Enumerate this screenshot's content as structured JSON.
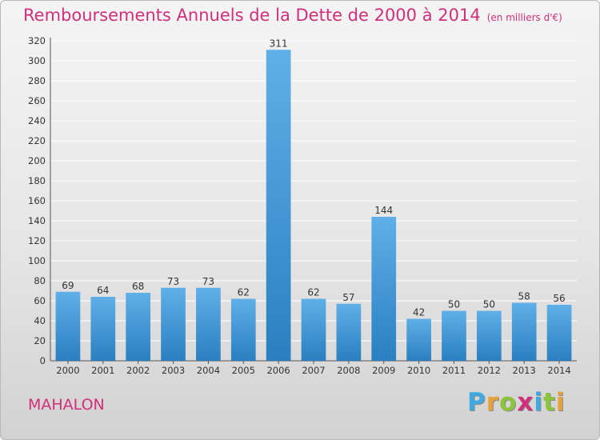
{
  "page": {
    "title": "Remboursements Annuels de la Dette de 2000 à 2014",
    "subtitle": "(en milliers d'€)",
    "commune": "MAHALON",
    "brand": {
      "name": "Proxiti",
      "letters": [
        {
          "ch": "P",
          "color": "#3fa9e0"
        },
        {
          "ch": "r",
          "color": "#e9a23a"
        },
        {
          "ch": "o",
          "color": "#8cc43c"
        },
        {
          "ch": "x",
          "color": "#d0307a"
        },
        {
          "ch": "i",
          "color": "#3fa9e0"
        },
        {
          "ch": "t",
          "color": "#8cc43c"
        },
        {
          "ch": "i",
          "color": "#e9a23a"
        }
      ]
    }
  },
  "chart_data": {
    "type": "bar",
    "title": "Remboursements Annuels de la Dette de 2000 à 2014",
    "subtitle": "(en milliers d'€)",
    "xlabel": "",
    "ylabel": "",
    "categories": [
      "2000",
      "2001",
      "2002",
      "2003",
      "2004",
      "2005",
      "2006",
      "2007",
      "2008",
      "2009",
      "2010",
      "2011",
      "2012",
      "2013",
      "2014"
    ],
    "values": [
      69,
      64,
      68,
      73,
      73,
      62,
      311,
      62,
      57,
      144,
      42,
      50,
      50,
      58,
      56
    ],
    "data_labels": [
      "69",
      "64",
      "68",
      "73",
      "73",
      "62",
      "311",
      "62",
      "57",
      "144",
      "42",
      "50",
      "50",
      "58",
      "56"
    ],
    "ylim": [
      0,
      320
    ],
    "yticks": [
      0,
      20,
      40,
      60,
      80,
      100,
      120,
      140,
      160,
      180,
      200,
      220,
      240,
      260,
      280,
      300,
      320
    ],
    "grid": true,
    "legend": "none",
    "colors": {
      "bar_light": "#5fb0e8",
      "bar_dark": "#2a7fc0",
      "grid": "#ffffff",
      "axis": "#555555",
      "text": "#333333",
      "title": "#d0307a"
    }
  }
}
